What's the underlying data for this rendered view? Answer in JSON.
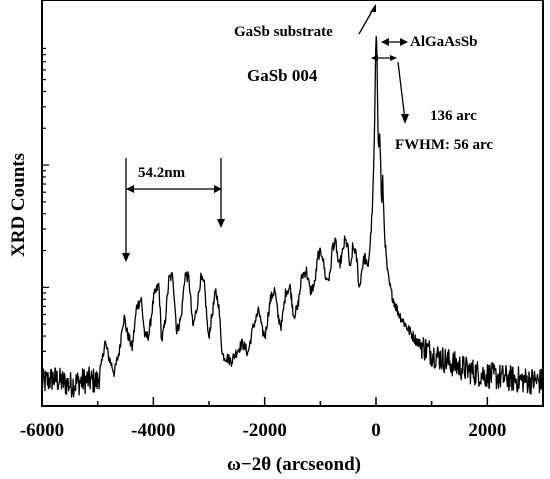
{
  "chart_data": {
    "type": "line",
    "xlabel": "ω−2θ (arcseond)",
    "ylabel": "XRD Counts",
    "xlim": [
      -6000,
      3000
    ],
    "xticks": [
      -6000,
      -4000,
      -2000,
      0,
      2000
    ],
    "y_scale": "log",
    "y_tick_labels": "none",
    "grid": false,
    "legend": "none",
    "annotations": {
      "reflection": "GaSb 004",
      "substrate_peak": "GaSb substrate",
      "layer_peak": "AlGaAsSb",
      "peak_separation": "136 arc",
      "fwhm": "FWHM: 56 arc",
      "fringe_period": "54.2nm"
    },
    "series": [
      {
        "x": [
          -6000,
          -5800,
          -5500,
          -5200,
          -5000,
          -4930,
          -4870,
          -4800,
          -4700,
          -4600,
          -4560,
          -4520,
          -4480,
          -4380,
          -4300,
          -4220,
          -4150,
          -4080,
          -3990,
          -3900,
          -3850,
          -3790,
          -3720,
          -3650,
          -3580,
          -3500,
          -3430,
          -3360,
          -3290,
          -3220,
          -3150,
          -3080,
          -3010,
          -2950,
          -2880,
          -2830,
          -2760,
          -2700,
          -2600,
          -2500,
          -2400,
          -2300,
          -2200,
          -2100,
          -2050,
          -1990,
          -1900,
          -1820,
          -1760,
          -1700,
          -1620,
          -1540,
          -1480,
          -1410,
          -1330,
          -1250,
          -1180,
          -1100,
          -1040,
          -970,
          -900,
          -830,
          -780,
          -720,
          -670,
          -610,
          -560,
          -510,
          -460,
          -420,
          -380,
          -340,
          -300,
          -250,
          -200,
          -150,
          -100,
          -60,
          -30,
          0,
          15,
          30,
          45,
          60,
          80,
          100,
          120,
          150,
          180,
          210,
          240,
          280,
          320,
          360,
          420,
          500,
          600,
          700,
          800,
          1000,
          1200,
          1400,
          1600,
          1800,
          2000,
          2200,
          2400,
          2600,
          2800,
          3000
        ],
        "values": [
          1.65,
          1.8,
          1.6,
          1.75,
          1.7,
          2.3,
          3.6,
          2.7,
          2.0,
          3.2,
          4.9,
          5.7,
          4.4,
          3.2,
          6.9,
          8.1,
          3.9,
          4.1,
          8.4,
          10.6,
          3.6,
          5.1,
          11.8,
          12.5,
          4.3,
          5.7,
          12.9,
          11.8,
          4.7,
          6.7,
          11.9,
          10.3,
          3.8,
          5.7,
          9.3,
          7.4,
          2.8,
          2.7,
          2.5,
          3.0,
          3.5,
          2.9,
          4.9,
          6.5,
          4.5,
          4.0,
          7.9,
          9.6,
          5.8,
          4.8,
          9.3,
          10.0,
          5.9,
          6.7,
          12.4,
          13.8,
          9.3,
          10.6,
          18.5,
          19.3,
          11.6,
          12.1,
          22.0,
          23.1,
          14.6,
          18.1,
          24.4,
          22.0,
          13.3,
          20.9,
          20.4,
          16.4,
          9.5,
          14.5,
          18.1,
          14.0,
          24.1,
          50.0,
          160.0,
          1200.0,
          1000.0,
          300.0,
          120.0,
          200.0,
          120.0,
          45.0,
          75.0,
          30.0,
          18.1,
          12.9,
          10.6,
          8.9,
          7.8,
          6.9,
          6.0,
          5.2,
          4.4,
          3.8,
          3.4,
          2.9,
          2.6,
          2.35,
          2.15,
          2.0,
          1.92,
          1.85,
          1.8,
          1.75,
          1.72,
          1.7
        ]
      }
    ]
  }
}
